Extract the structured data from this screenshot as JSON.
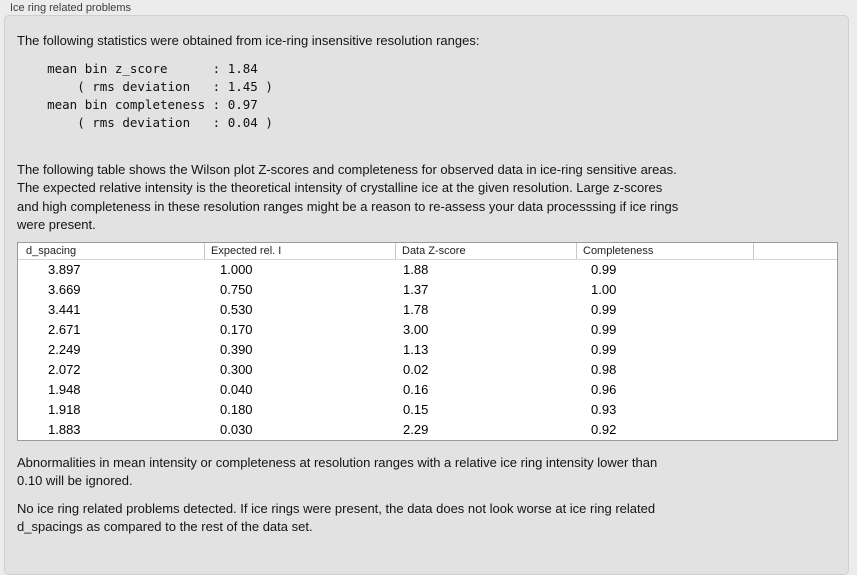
{
  "panel": {
    "title": "Ice ring related problems"
  },
  "sections": {
    "intro": "The following statistics were obtained from ice-ring insensitive resolution ranges:",
    "stats": "    mean bin z_score      : 1.84\n        ( rms deviation   : 1.45 )\n    mean bin completeness : 0.97\n        ( rms deviation   : 0.04 )",
    "table_description": "The following table shows the Wilson plot Z-scores and completeness for observed data in ice-ring sensitive areas.\nThe expected relative intensity is the theoretical intensity of crystalline ice at the given resolution. Large z-scores\nand high completeness in these resolution ranges might be a reason to re-assess your data processsing if ice rings\nwere present.",
    "ignore_note": "Abnormalities in mean intensity or completeness at resolution ranges with a relative ice ring intensity lower than\n0.10 will be ignored.",
    "conclusion": "No ice ring related problems detected. If ice rings were present, the data does not look worse at ice ring related\nd_spacings as compared to the rest of the data set."
  },
  "stats_values": {
    "mean_bin_z_score": "1.84",
    "z_score_rms_deviation": "1.45",
    "mean_bin_completeness": "0.97",
    "completeness_rms_deviation": "0.04"
  },
  "table": {
    "columns": [
      "d_spacing",
      "Expected rel. I",
      "Data Z-score",
      "Completeness"
    ],
    "rows": [
      [
        "3.897",
        "1.000",
        "1.88",
        "0.99"
      ],
      [
        "3.669",
        "0.750",
        "1.37",
        "1.00"
      ],
      [
        "3.441",
        "0.530",
        "1.78",
        "0.99"
      ],
      [
        "2.671",
        "0.170",
        "3.00",
        "0.99"
      ],
      [
        "2.249",
        "0.390",
        "1.13",
        "0.99"
      ],
      [
        "2.072",
        "0.300",
        "0.02",
        "0.98"
      ],
      [
        "1.948",
        "0.040",
        "0.16",
        "0.96"
      ],
      [
        "1.918",
        "0.180",
        "0.15",
        "0.93"
      ],
      [
        "1.883",
        "0.030",
        "2.29",
        "0.92"
      ]
    ]
  },
  "colors": {
    "page_bg": "#ececec",
    "panel_bg": "#e2e2e2",
    "panel_border": "#cfcfcf",
    "table_bg": "#ffffff",
    "table_border": "#9b9b9b",
    "header_separator": "#c9c9c9",
    "text": "#141414"
  }
}
